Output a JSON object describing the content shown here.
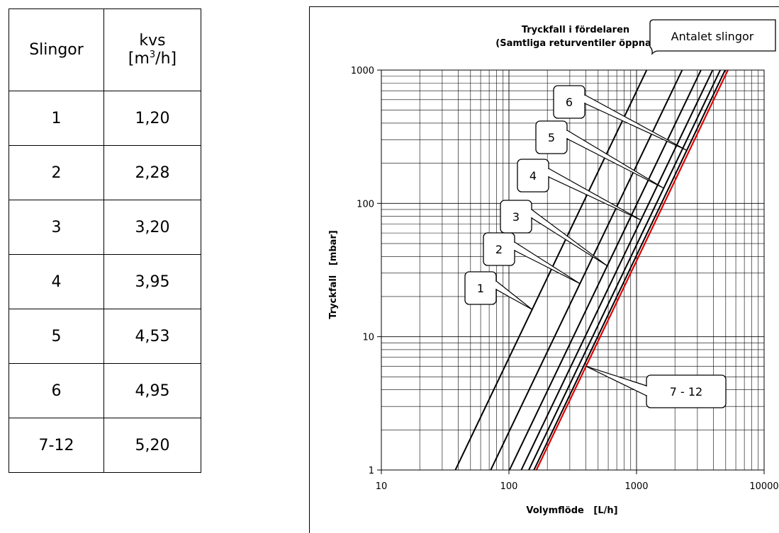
{
  "table": {
    "header_slingor": "Slingor",
    "header_kvs": "kvs",
    "header_unit_pre": "[m",
    "header_unit_sup": "3",
    "header_unit_post": "/h]",
    "rows": [
      {
        "slingor": "1",
        "kvs": "1,20"
      },
      {
        "slingor": "2",
        "kvs": "2,28"
      },
      {
        "slingor": "3",
        "kvs": "3,20"
      },
      {
        "slingor": "4",
        "kvs": "3,95"
      },
      {
        "slingor": "5",
        "kvs": "4,53"
      },
      {
        "slingor": "6",
        "kvs": "4,95"
      },
      {
        "slingor": "7-12",
        "kvs": "5,20"
      }
    ]
  },
  "chart_data": {
    "type": "line",
    "title": "Tryckfall i fördelaren",
    "subtitle": "(Samtliga returventiler öppna)",
    "legend_title": "Antalet slingor",
    "xlabel": "Volymflöde   [L/h]",
    "ylabel": "Tryckfall   [mbar]",
    "xscale": "log",
    "yscale": "log",
    "xlim": [
      10,
      10000
    ],
    "ylim": [
      1,
      1000
    ],
    "grid": true,
    "x_ticks": [
      "10",
      "100",
      "1000",
      "10000"
    ],
    "y_ticks": [
      "1",
      "10",
      "100",
      "1000"
    ],
    "series": [
      {
        "name": "1",
        "kvs": 1.2,
        "color": "#000000",
        "x": [
          38,
          1200
        ],
        "y": [
          1,
          1000
        ]
      },
      {
        "name": "2",
        "kvs": 2.28,
        "color": "#000000",
        "x": [
          72,
          2280
        ],
        "y": [
          1,
          1000
        ]
      },
      {
        "name": "3",
        "kvs": 3.2,
        "color": "#000000",
        "x": [
          101,
          3200
        ],
        "y": [
          1,
          1000
        ]
      },
      {
        "name": "4",
        "kvs": 3.95,
        "color": "#000000",
        "x": [
          125,
          3950
        ],
        "y": [
          1,
          1000
        ]
      },
      {
        "name": "5",
        "kvs": 4.53,
        "color": "#000000",
        "x": [
          143,
          4530
        ],
        "y": [
          1,
          1000
        ]
      },
      {
        "name": "6",
        "kvs": 4.95,
        "color": "#000000",
        "x": [
          157,
          4950
        ],
        "y": [
          1,
          1000
        ]
      },
      {
        "name": "7 - 12",
        "kvs": 5.2,
        "color": "#e00000",
        "x": [
          164,
          5200
        ],
        "y": [
          1,
          1000
        ]
      }
    ],
    "callouts": [
      {
        "label": "1",
        "target_series": "1"
      },
      {
        "label": "2",
        "target_series": "2"
      },
      {
        "label": "3",
        "target_series": "3"
      },
      {
        "label": "4",
        "target_series": "4"
      },
      {
        "label": "5",
        "target_series": "5"
      },
      {
        "label": "6",
        "target_series": "6"
      },
      {
        "label": "7 - 12",
        "target_series": "7 - 12"
      }
    ]
  }
}
